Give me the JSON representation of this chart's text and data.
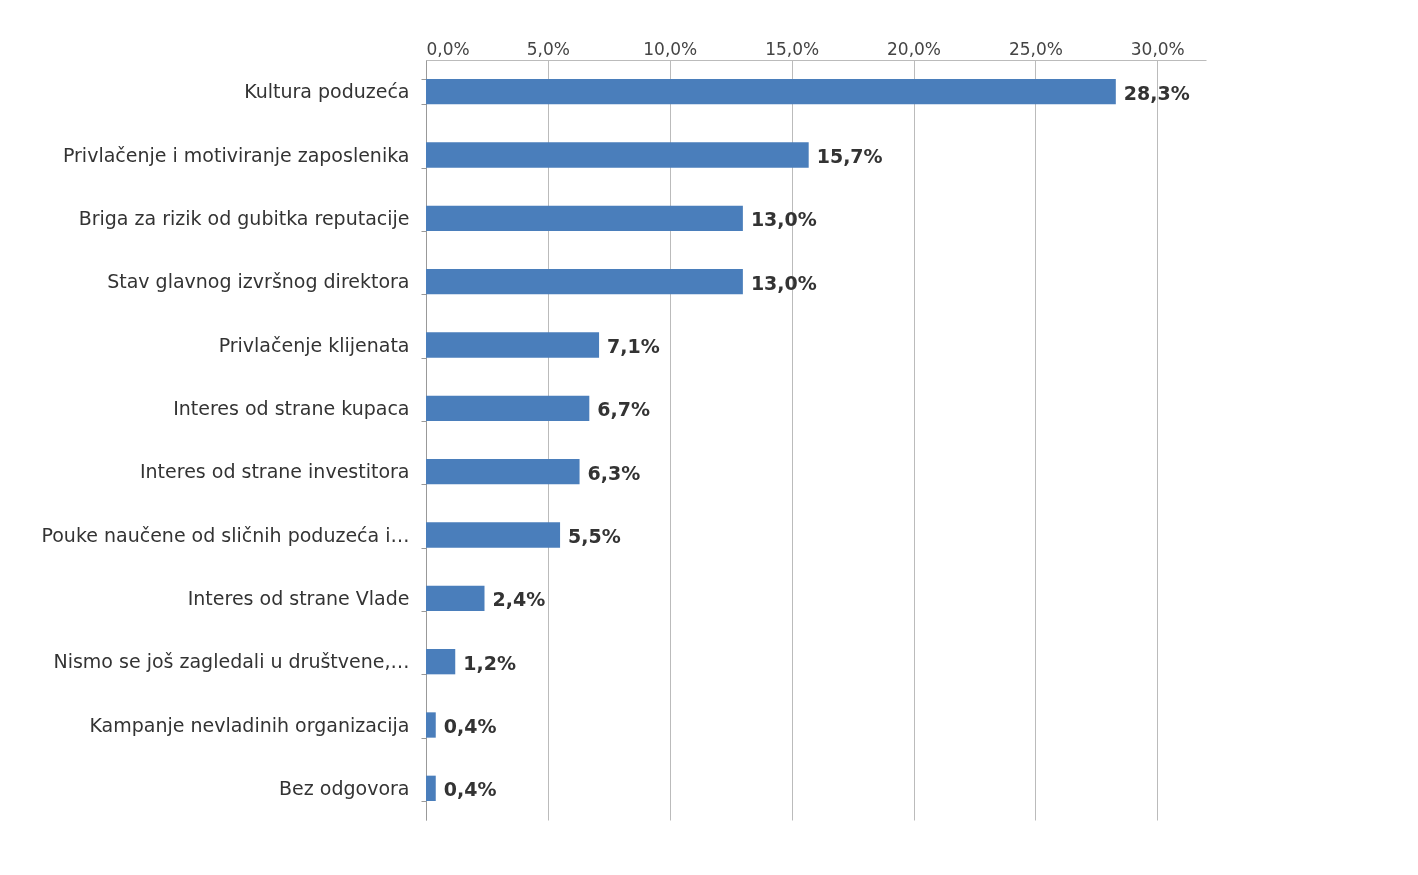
{
  "chart_data": {
    "type": "bar",
    "orientation": "horizontal",
    "categories": [
      "Kultura poduzeća",
      "Privlačenje i motiviranje zaposlenika",
      "Briga za rizik od gubitka reputacije",
      "Stav glavnog izvršnog direktora",
      "Privlačenje klijenata",
      "Interes od strane kupaca",
      "Interes od strane investitora",
      "Pouke naučene od sličnih poduzeća i…",
      "Interes od strane Vlade",
      "Nismo se još zagledali u društvene,…",
      "Kampanje nevladinih organizacija",
      "Bez odgovora"
    ],
    "values": [
      28.3,
      15.7,
      13.0,
      13.0,
      7.1,
      6.7,
      6.3,
      5.5,
      2.4,
      1.2,
      0.4,
      0.4
    ],
    "value_labels": [
      "28,3%",
      "15,7%",
      "13,0%",
      "13,0%",
      "7,1%",
      "6,7%",
      "6,3%",
      "5,5%",
      "2,4%",
      "1,2%",
      "0,4%",
      "0,4%"
    ],
    "color": "#4a7ebb",
    "xlim": [
      0,
      32
    ],
    "xticks": [
      {
        "value": 0,
        "label": "0,0%"
      },
      {
        "value": 5,
        "label": "5,0%"
      },
      {
        "value": 10,
        "label": "10,0%"
      },
      {
        "value": 15,
        "label": "15,0%"
      },
      {
        "value": 20,
        "label": "20,0%"
      },
      {
        "value": 25,
        "label": "25,0%"
      },
      {
        "value": 30,
        "label": "30,0%"
      }
    ],
    "grid": "x"
  }
}
